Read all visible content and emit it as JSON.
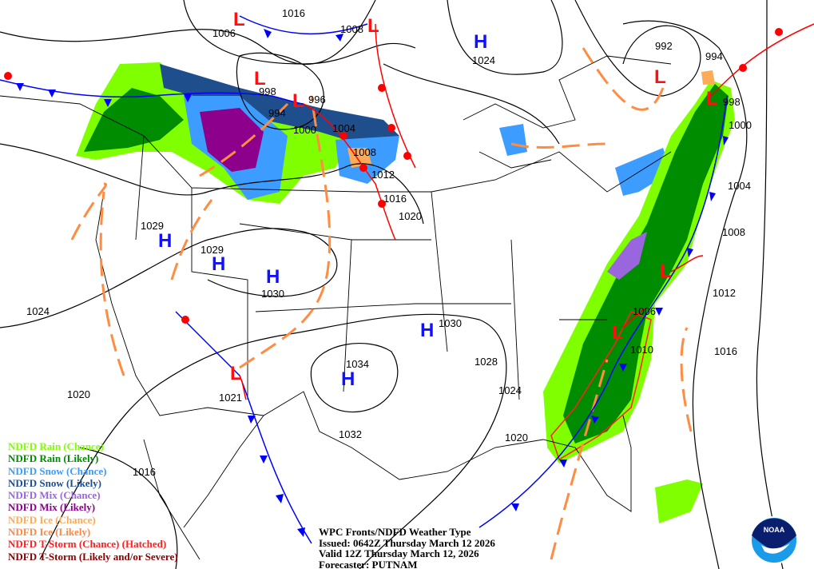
{
  "map_title": {
    "line1": "WPC Fronts/NDFD Weather Type",
    "issued": "Issued: 0642Z Thursday March 12 2026",
    "valid": "Valid 12Z Thursday March 12, 2026",
    "forecaster": "Forecaster: PUTNAM"
  },
  "legend": [
    {
      "label": "NDFD Rain (Chance)",
      "color": "#80ff00"
    },
    {
      "label": "NDFD Rain (Likely)",
      "color": "#008c00"
    },
    {
      "label": "NDFD Snow (Chance)",
      "color": "#3c9cff"
    },
    {
      "label": "NDFD Snow (Likely)",
      "color": "#1e4f8c"
    },
    {
      "label": "NDFD Mix (Chance)",
      "color": "#9966dd"
    },
    {
      "label": "NDFD Mix (Likely)",
      "color": "#8c008c"
    },
    {
      "label": "NDFD Ice (Chance)",
      "color": "#ffaa55"
    },
    {
      "label": "NDFD Ice (Likely)",
      "color": "#ff8844"
    },
    {
      "label": "NDFD T-Storm (Chance) (Hatched)",
      "color": "#ff2020"
    },
    {
      "label": "NDFD T-Storm (Likely and/or Severe)",
      "color": "#8c0000"
    }
  ],
  "high_symbol": "H",
  "low_symbol": "L",
  "high_pressure_labels": [
    "1024",
    "1029",
    "1029",
    "1030",
    "1030",
    "1034"
  ],
  "isobar_labels": [
    "1016",
    "1006",
    "1008",
    "992",
    "994",
    "998",
    "996",
    "994",
    "1000",
    "1004",
    "1008",
    "1012",
    "1016",
    "1020",
    "998",
    "1000",
    "1004",
    "1008",
    "1012",
    "1006",
    "1010",
    "1016",
    "1024",
    "1020",
    "1016",
    "1021",
    "1032",
    "1028",
    "1024",
    "1020"
  ],
  "logo_text": "NOAA",
  "colors": {
    "high": "#1010ff",
    "low": "#ff1010",
    "cold_front": "#0000ff",
    "warm_front": "#ff0000",
    "trough": "#ff8c40"
  }
}
